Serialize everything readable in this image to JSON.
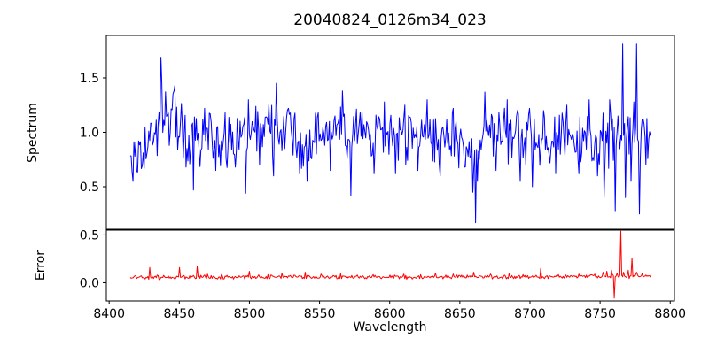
{
  "chart_data": {
    "type": "line",
    "title": "20040824_0126m34_023",
    "xlabel": "Wavelength",
    "background_color": "#ffffff",
    "grid": false,
    "legend": false,
    "xlim": [
      8398,
      8803
    ],
    "xticks": [
      8400,
      8450,
      8500,
      8550,
      8600,
      8650,
      8700,
      8750,
      8800
    ],
    "xtick_labels": [
      "8400",
      "8450",
      "8500",
      "8550",
      "8600",
      "8650",
      "8700",
      "8750",
      "8800"
    ],
    "panels": [
      {
        "name": "spectrum",
        "ylabel": "Spectrum",
        "line_color": "#0000ff",
        "ylim": [
          0.11,
          1.89
        ],
        "yticks": [
          0.5,
          1.0,
          1.5
        ],
        "ytick_labels": [
          "0.5",
          "1.0",
          "1.5"
        ],
        "x_start": 8415,
        "x_end": 8786,
        "n_points": 560,
        "noise_amplitude": 0.3,
        "noise_seed": 12345,
        "baseline": [
          [
            8415,
            0.7
          ],
          [
            8419,
            0.65
          ],
          [
            8424,
            0.85
          ],
          [
            8430,
            0.95
          ],
          [
            8434,
            1.02
          ],
          [
            8437,
            1.25
          ],
          [
            8440,
            1.15
          ],
          [
            8447,
            1.12
          ],
          [
            8452,
            1.02
          ],
          [
            8458,
            0.88
          ],
          [
            8464,
            0.92
          ],
          [
            8470,
            1.0
          ],
          [
            8478,
            0.92
          ],
          [
            8488,
            0.95
          ],
          [
            8498,
            0.98
          ],
          [
            8508,
            1.0
          ],
          [
            8516,
            1.05
          ],
          [
            8524,
            1.02
          ],
          [
            8534,
            0.95
          ],
          [
            8542,
            0.85
          ],
          [
            8550,
            0.98
          ],
          [
            8560,
            1.02
          ],
          [
            8570,
            0.95
          ],
          [
            8582,
            0.96
          ],
          [
            8594,
            1.0
          ],
          [
            8606,
            0.95
          ],
          [
            8618,
            0.97
          ],
          [
            8630,
            0.94
          ],
          [
            8642,
            0.95
          ],
          [
            8652,
            0.9
          ],
          [
            8658,
            0.78
          ],
          [
            8661,
            0.62
          ],
          [
            8665,
            0.92
          ],
          [
            8672,
            1.0
          ],
          [
            8684,
            1.0
          ],
          [
            8695,
            0.95
          ],
          [
            8706,
            0.9
          ],
          [
            8718,
            0.93
          ],
          [
            8730,
            0.96
          ],
          [
            8740,
            0.98
          ],
          [
            8750,
            0.93
          ],
          [
            8760,
            0.92
          ],
          [
            8768,
            0.95
          ],
          [
            8778,
            0.95
          ],
          [
            8786,
            0.92
          ]
        ],
        "spikes": [
          [
            8417,
            0.55
          ],
          [
            8437,
            1.69
          ],
          [
            8443,
            0.88
          ],
          [
            8447,
            1.43
          ],
          [
            8455,
            0.68
          ],
          [
            8460,
            0.47
          ],
          [
            8468,
            1.22
          ],
          [
            8476,
            0.65
          ],
          [
            8483,
            1.18
          ],
          [
            8490,
            0.68
          ],
          [
            8497,
            0.44
          ],
          [
            8499,
            1.3
          ],
          [
            8507,
            0.7
          ],
          [
            8517,
            0.6
          ],
          [
            8519,
            1.45
          ],
          [
            8528,
            1.22
          ],
          [
            8536,
            0.62
          ],
          [
            8541,
            0.55
          ],
          [
            8549,
            1.18
          ],
          [
            8558,
            0.65
          ],
          [
            8566,
            1.38
          ],
          [
            8572,
            0.42
          ],
          [
            8580,
            1.2
          ],
          [
            8589,
            0.62
          ],
          [
            8596,
            1.28
          ],
          [
            8604,
            0.62
          ],
          [
            8611,
            1.25
          ],
          [
            8620,
            0.65
          ],
          [
            8627,
            1.3
          ],
          [
            8636,
            0.6
          ],
          [
            8645,
            1.22
          ],
          [
            8653,
            0.68
          ],
          [
            8659.5,
            0.45
          ],
          [
            8661,
            0.17
          ],
          [
            8662.5,
            0.55
          ],
          [
            8668,
            1.37
          ],
          [
            8676,
            0.65
          ],
          [
            8684,
            1.3
          ],
          [
            8693,
            0.55
          ],
          [
            8700,
            1.22
          ],
          [
            8702,
            0.5
          ],
          [
            8710,
            1.2
          ],
          [
            8718,
            0.62
          ],
          [
            8726,
            1.25
          ],
          [
            8735,
            0.62
          ],
          [
            8742,
            1.3
          ],
          [
            8748,
            0.6
          ],
          [
            8753,
            0.4
          ],
          [
            8757,
            1.3
          ],
          [
            8761,
            0.28
          ],
          [
            8763,
            1.15
          ],
          [
            8766,
            1.81
          ],
          [
            8768,
            0.4
          ],
          [
            8772,
            0.55
          ],
          [
            8774,
            1.28
          ],
          [
            8776,
            1.81
          ],
          [
            8778,
            0.25
          ],
          [
            8781,
            1.12
          ],
          [
            8783,
            0.7
          ]
        ]
      },
      {
        "name": "error",
        "ylabel": "Error",
        "line_color": "#ff0000",
        "ylim": [
          -0.19,
          0.55
        ],
        "yticks": [
          0.0,
          0.5
        ],
        "ytick_labels": [
          "0.0",
          "0.5"
        ],
        "x_start": 8415,
        "x_end": 8786,
        "n_points": 560,
        "noise_amplitude": 0.025,
        "noise_seed": 67890,
        "baseline": [
          [
            8415,
            0.055
          ],
          [
            8460,
            0.06
          ],
          [
            8520,
            0.058
          ],
          [
            8600,
            0.06
          ],
          [
            8680,
            0.06
          ],
          [
            8740,
            0.065
          ],
          [
            8786,
            0.07
          ]
        ],
        "spikes": [
          [
            8429,
            0.16
          ],
          [
            8434,
            0.08
          ],
          [
            8450,
            0.16
          ],
          [
            8463,
            0.17
          ],
          [
            8470,
            0.09
          ],
          [
            8480,
            0.085
          ],
          [
            8500,
            0.12
          ],
          [
            8513,
            0.085
          ],
          [
            8523,
            0.1
          ],
          [
            8532,
            0.08
          ],
          [
            8540,
            0.11
          ],
          [
            8551,
            0.09
          ],
          [
            8565,
            0.095
          ],
          [
            8577,
            0.08
          ],
          [
            8588,
            0.085
          ],
          [
            8600,
            0.08
          ],
          [
            8610,
            0.09
          ],
          [
            8622,
            0.085
          ],
          [
            8633,
            0.1
          ],
          [
            8645,
            0.09
          ],
          [
            8655,
            0.08
          ],
          [
            8660,
            0.11
          ],
          [
            8672,
            0.09
          ],
          [
            8685,
            0.095
          ],
          [
            8695,
            0.085
          ],
          [
            8708,
            0.15
          ],
          [
            8720,
            0.085
          ],
          [
            8735,
            0.09
          ],
          [
            8746,
            0.09
          ],
          [
            8752,
            0.11
          ],
          [
            8755,
            0.12
          ],
          [
            8758,
            0.13
          ],
          [
            8760,
            -0.16
          ],
          [
            8762,
            0.1
          ],
          [
            8765,
            0.54
          ],
          [
            8767,
            0.11
          ],
          [
            8770,
            0.13
          ],
          [
            8773,
            0.26
          ],
          [
            8776,
            0.11
          ],
          [
            8780,
            0.095
          ],
          [
            8783,
            0.08
          ]
        ]
      }
    ]
  }
}
